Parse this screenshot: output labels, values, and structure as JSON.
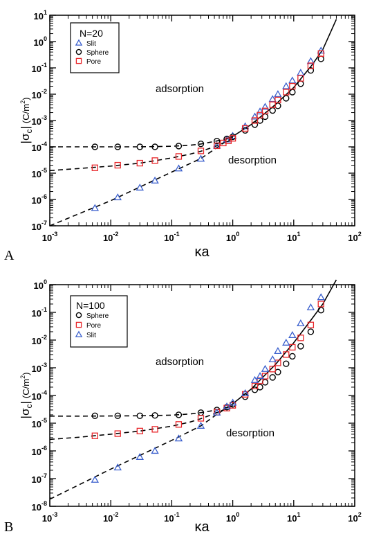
{
  "chart_data": [
    {
      "type": "scatter",
      "panel_label": "A",
      "xlabel": "κa",
      "ylabel": "|σc| (C/m²)",
      "ylabel_main": "|σ",
      "ylabel_sub": "c",
      "ylabel_bar": "|",
      "ylabel_unit": "(C/m",
      "ylabel_unit_sup": "2",
      "ylabel_unit_close": ")",
      "x_scale": "log",
      "y_scale": "log",
      "xlim": [
        0.001,
        100
      ],
      "ylim": [
        1e-07,
        10
      ],
      "x_ticks": [
        {
          "base": "10",
          "exp": "-3"
        },
        {
          "base": "10",
          "exp": "-2"
        },
        {
          "base": "10",
          "exp": "-1"
        },
        {
          "base": "10",
          "exp": "0"
        },
        {
          "base": "10",
          "exp": "1"
        },
        {
          "base": "10",
          "exp": "2"
        }
      ],
      "y_ticks": [
        {
          "base": "10",
          "exp": "-7"
        },
        {
          "base": "10",
          "exp": "-6"
        },
        {
          "base": "10",
          "exp": "-5"
        },
        {
          "base": "10",
          "exp": "-4"
        },
        {
          "base": "10",
          "exp": "-3"
        },
        {
          "base": "10",
          "exp": "-2"
        },
        {
          "base": "10",
          "exp": "-1"
        },
        {
          "base": "10",
          "exp": "0"
        },
        {
          "base": "10",
          "exp": "1"
        }
      ],
      "annotations": [
        "adsorption",
        "desorption"
      ],
      "legend": {
        "title": "N=20",
        "placement": "top-left",
        "entries": [
          "Slit",
          "Sphere",
          "Pore"
        ]
      },
      "series": [
        {
          "name": "Slit",
          "marker": "triangle",
          "color": "#3a5fcd",
          "x": [
            0.0055,
            0.013,
            0.03,
            0.053,
            0.13,
            0.3,
            0.55,
            0.8,
            1.0,
            1.6,
            2.3,
            2.8,
            3.4,
            4.5,
            5.5,
            7.5,
            9.5,
            13,
            19,
            28
          ],
          "y": [
            4.7e-07,
            1.2e-06,
            2.8e-06,
            5.2e-06,
            1.5e-05,
            3.5e-05,
            0.00011,
            0.00019,
            0.00026,
            0.0006,
            0.0014,
            0.0022,
            0.0033,
            0.0065,
            0.01,
            0.02,
            0.033,
            0.065,
            0.18,
            0.45
          ]
        },
        {
          "name": "Sphere",
          "marker": "circle",
          "color": "#000000",
          "x": [
            0.0055,
            0.013,
            0.03,
            0.053,
            0.13,
            0.3,
            0.55,
            0.8,
            1.0,
            1.6,
            2.3,
            2.8,
            3.4,
            4.5,
            5.5,
            7.5,
            9.5,
            13,
            19,
            28
          ],
          "y": [
            0.0001,
            0.0001,
            0.0001,
            0.0001,
            0.000107,
            0.00013,
            0.000165,
            0.0002,
            0.00024,
            0.00042,
            0.0007,
            0.001,
            0.0014,
            0.0024,
            0.0036,
            0.007,
            0.012,
            0.025,
            0.08,
            0.22
          ]
        },
        {
          "name": "Pore",
          "marker": "square",
          "color": "#e8262a",
          "x": [
            0.0055,
            0.013,
            0.03,
            0.053,
            0.13,
            0.3,
            0.55,
            0.7,
            0.85,
            1.0,
            1.6,
            2.3,
            2.8,
            3.4,
            4.5,
            5.5,
            7.5,
            9.5,
            13,
            19,
            28
          ],
          "y": [
            1.6e-05,
            2e-05,
            2.4e-05,
            3e-05,
            4.3e-05,
            7e-05,
            0.00011,
            0.00014,
            0.00017,
            0.00021,
            0.0005,
            0.001,
            0.0016,
            0.0023,
            0.004,
            0.006,
            0.012,
            0.02,
            0.04,
            0.12,
            0.35
          ]
        }
      ],
      "fit_curves": [
        {
          "style": "dashed",
          "x": [
            0.001,
            0.003,
            0.01,
            0.03,
            0.1,
            0.2,
            0.3,
            0.5,
            0.8,
            1.0
          ],
          "y": [
            0.0001,
            0.0001,
            0.0001,
            0.0001,
            0.000105,
            0.000115,
            0.000128,
            0.00016,
            0.0002,
            0.00024
          ]
        },
        {
          "style": "dashed",
          "x": [
            0.001,
            0.003,
            0.01,
            0.03,
            0.1,
            0.2,
            0.3,
            0.5,
            0.8,
            1.0
          ],
          "y": [
            1.25e-05,
            1.5e-05,
            1.85e-05,
            2.4e-05,
            3.8e-05,
            5.3e-05,
            6.8e-05,
            0.0001,
            0.00016,
            0.00021
          ]
        },
        {
          "style": "dashed",
          "x": [
            0.001,
            0.01,
            0.1,
            0.3,
            0.5,
            0.8,
            1.0
          ],
          "y": [
            1e-07,
            9e-07,
            1.1e-05,
            3.6e-05,
            8e-05,
            0.00017,
            0.00023
          ]
        },
        {
          "style": "solid",
          "x": [
            0.8,
            1.0,
            2.0,
            5.0,
            10,
            20,
            30,
            50
          ],
          "y": [
            0.0002,
            0.00025,
            0.0007,
            0.004,
            0.018,
            0.13,
            0.5,
            7
          ]
        }
      ]
    },
    {
      "type": "scatter",
      "panel_label": "B",
      "xlabel": "κa",
      "ylabel": "|σc| (C/m²)",
      "ylabel_main": "|σ",
      "ylabel_sub": "c",
      "ylabel_bar": "|",
      "ylabel_unit": "(C/m",
      "ylabel_unit_sup": "2",
      "ylabel_unit_close": ")",
      "x_scale": "log",
      "y_scale": "log",
      "xlim": [
        0.001,
        100
      ],
      "ylim": [
        1e-08,
        1
      ],
      "x_ticks": [
        {
          "base": "10",
          "exp": "-3"
        },
        {
          "base": "10",
          "exp": "-2"
        },
        {
          "base": "10",
          "exp": "-1"
        },
        {
          "base": "10",
          "exp": "0"
        },
        {
          "base": "10",
          "exp": "1"
        },
        {
          "base": "10",
          "exp": "2"
        }
      ],
      "y_ticks": [
        {
          "base": "10",
          "exp": "-8"
        },
        {
          "base": "10",
          "exp": "-7"
        },
        {
          "base": "10",
          "exp": "-6"
        },
        {
          "base": "10",
          "exp": "-5"
        },
        {
          "base": "10",
          "exp": "-4"
        },
        {
          "base": "10",
          "exp": "-3"
        },
        {
          "base": "10",
          "exp": "-2"
        },
        {
          "base": "10",
          "exp": "-1"
        },
        {
          "base": "10",
          "exp": "0"
        }
      ],
      "annotations": [
        "adsorption",
        "desorption"
      ],
      "legend": {
        "title": "N=100",
        "placement": "top-left",
        "entries": [
          "Sphere",
          "Pore",
          "Slit"
        ]
      },
      "series": [
        {
          "name": "Sphere",
          "marker": "circle",
          "color": "#000000",
          "x": [
            0.0055,
            0.013,
            0.03,
            0.053,
            0.13,
            0.3,
            0.55,
            0.8,
            1.0,
            1.6,
            2.3,
            2.8,
            3.4,
            4.5,
            5.5,
            7.5,
            9.5,
            13,
            19,
            28
          ],
          "y": [
            1.85e-05,
            1.85e-05,
            1.85e-05,
            1.9e-05,
            2e-05,
            2.4e-05,
            3e-05,
            3.8e-05,
            4.8e-05,
            9e-05,
            0.00016,
            0.0002,
            0.0003,
            0.00045,
            0.0007,
            0.0014,
            0.0026,
            0.006,
            0.02,
            0.12
          ]
        },
        {
          "name": "Pore",
          "marker": "square",
          "color": "#e8262a",
          "x": [
            0.0055,
            0.013,
            0.03,
            0.053,
            0.13,
            0.3,
            0.55,
            0.8,
            1.0,
            1.6,
            2.3,
            2.8,
            3.4,
            4.5,
            5.5,
            7.5,
            9.5,
            13,
            19,
            28
          ],
          "y": [
            3.5e-06,
            4.2e-06,
            5.2e-06,
            6e-06,
            9e-06,
            1.5e-05,
            2.5e-05,
            3.5e-05,
            4.4e-05,
            0.00011,
            0.00022,
            0.00034,
            0.0005,
            0.0009,
            0.0015,
            0.003,
            0.0055,
            0.012,
            0.035,
            0.2
          ]
        },
        {
          "name": "Slit",
          "marker": "triangle",
          "color": "#3a5fcd",
          "x": [
            0.0055,
            0.013,
            0.03,
            0.053,
            0.13,
            0.3,
            0.55,
            0.8,
            1.0,
            1.6,
            2.3,
            2.8,
            3.4,
            4.5,
            5.5,
            7.5,
            9.5,
            13,
            19,
            28
          ],
          "y": [
            9e-08,
            2.5e-07,
            6e-07,
            1e-06,
            2.8e-06,
            8e-06,
            2.4e-05,
            4e-05,
            5.5e-05,
            0.00012,
            0.00036,
            0.0005,
            0.0009,
            0.002,
            0.004,
            0.008,
            0.015,
            0.04,
            0.15,
            0.35
          ]
        }
      ],
      "fit_curves": [
        {
          "style": "dashed",
          "x": [
            0.001,
            0.003,
            0.01,
            0.03,
            0.1,
            0.2,
            0.3,
            0.5,
            0.8,
            1.0
          ],
          "y": [
            1.8e-05,
            1.8e-05,
            1.82e-05,
            1.85e-05,
            1.95e-05,
            2.15e-05,
            2.4e-05,
            2.9e-05,
            3.7e-05,
            4.5e-05
          ]
        },
        {
          "style": "dashed",
          "x": [
            0.001,
            0.003,
            0.01,
            0.03,
            0.1,
            0.2,
            0.3,
            0.5,
            0.8,
            1.0
          ],
          "y": [
            2.6e-06,
            3.1e-06,
            4e-06,
            5.2e-06,
            7.8e-06,
            1.1e-05,
            1.45e-05,
            2.2e-05,
            3.4e-05,
            4.3e-05
          ]
        },
        {
          "style": "dashed",
          "x": [
            0.001,
            0.01,
            0.1,
            0.3,
            0.5,
            0.8,
            1.0
          ],
          "y": [
            1.8e-08,
            2.2e-07,
            2.4e-06,
            8e-06,
            1.8e-05,
            3.6e-05,
            5e-05
          ]
        },
        {
          "style": "solid",
          "x": [
            0.8,
            1.0,
            2.0,
            5.0,
            10,
            20,
            30,
            50
          ],
          "y": [
            3.7e-05,
            5e-05,
            0.00017,
            0.0013,
            0.008,
            0.06,
            0.2,
            1.5
          ]
        }
      ]
    }
  ]
}
